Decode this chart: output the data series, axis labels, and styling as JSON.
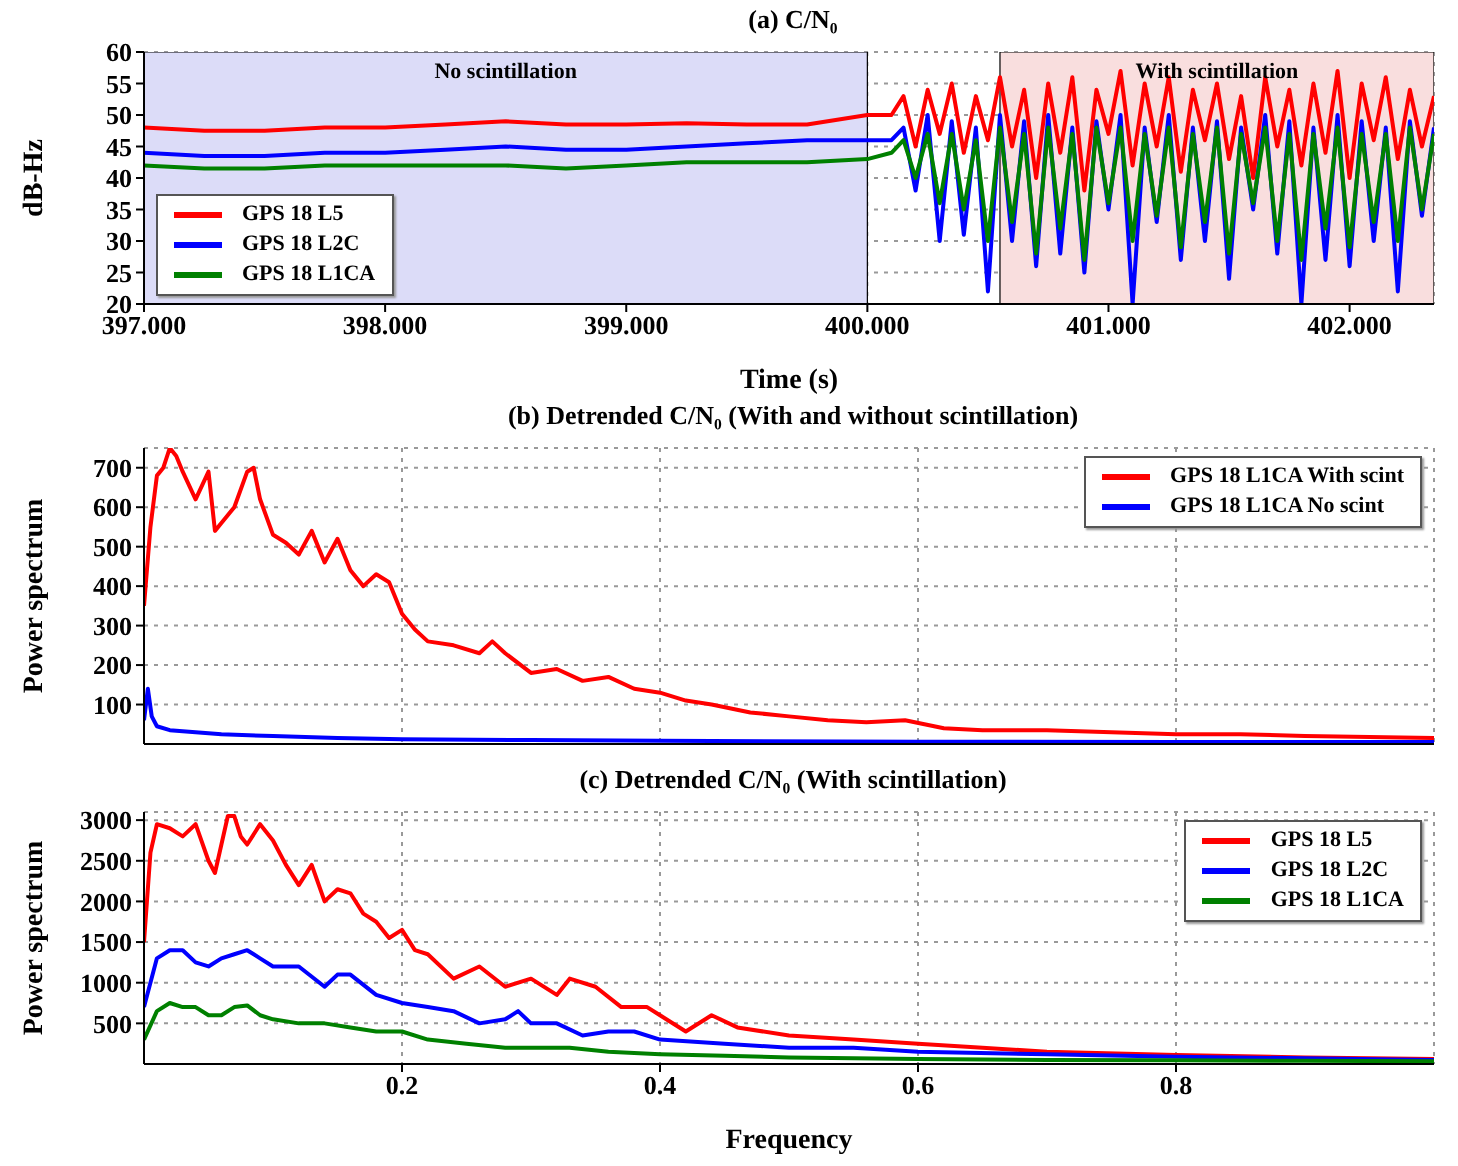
{
  "chart_data": [
    {
      "type": "line",
      "title": "(a) C/N₀",
      "xlabel": "Time (s)",
      "ylabel": "dB-Hz",
      "xlim": [
        397,
        402.35
      ],
      "xticks": [
        {
          "value": 397,
          "label": "397.000"
        },
        {
          "value": 398,
          "label": "398.000"
        },
        {
          "value": 399,
          "label": "399.000"
        },
        {
          "value": 400,
          "label": "400.000"
        },
        {
          "value": 401,
          "label": "401.000"
        },
        {
          "value": 402,
          "label": "402.000"
        }
      ],
      "ylim": [
        20,
        60
      ],
      "yticks": [
        20,
        25,
        30,
        35,
        40,
        45,
        50,
        55,
        60
      ],
      "grid": true,
      "legend": "bottom left",
      "line_style": "solid",
      "bands": [
        {
          "axis": "x",
          "from": 397,
          "to": 400,
          "label": "No scintillation",
          "color": "#dcdcf8"
        },
        {
          "axis": "x",
          "from": 400.55,
          "to": 402.35,
          "label": "With scintillation",
          "color": "#f9dede"
        }
      ],
      "x": [
        397,
        397.25,
        397.5,
        397.75,
        398,
        398.25,
        398.5,
        398.75,
        399,
        399.25,
        399.5,
        399.75,
        400,
        400.1,
        400.15,
        400.2,
        400.25,
        400.3,
        400.35,
        400.4,
        400.45,
        400.5,
        400.55,
        400.6,
        400.65,
        400.7,
        400.75,
        400.8,
        400.85,
        400.9,
        400.95,
        401,
        401.05,
        401.1,
        401.15,
        401.2,
        401.25,
        401.3,
        401.35,
        401.4,
        401.45,
        401.5,
        401.55,
        401.6,
        401.65,
        401.7,
        401.75,
        401.8,
        401.85,
        401.9,
        401.95,
        402,
        402.05,
        402.1,
        402.15,
        402.2,
        402.25,
        402.3,
        402.35
      ],
      "series": [
        {
          "name": "GPS 18 L5",
          "color": "#ff0000",
          "values": [
            48,
            47.5,
            47.5,
            48,
            48,
            48.5,
            49,
            48.5,
            48.5,
            48.7,
            48.5,
            48.5,
            50,
            50,
            53,
            45,
            54,
            47,
            55,
            44,
            53,
            46,
            56,
            45,
            54,
            40,
            55,
            44,
            56,
            38,
            54,
            47,
            57,
            42,
            55,
            45,
            56,
            41,
            54,
            46,
            55,
            43,
            53,
            40,
            56,
            45,
            54,
            42,
            55,
            44,
            57,
            40,
            55,
            46,
            56,
            43,
            54,
            45,
            53
          ]
        },
        {
          "name": "GPS 18 L2C",
          "color": "#0000ff",
          "values": [
            44,
            43.5,
            43.5,
            44,
            44,
            44.5,
            45,
            44.5,
            44.5,
            45,
            45.5,
            46,
            46,
            46,
            48,
            38,
            50,
            30,
            49,
            31,
            48,
            22,
            50,
            30,
            49,
            26,
            50,
            28,
            48,
            25,
            49,
            35,
            50,
            20,
            48,
            33,
            50,
            27,
            48,
            30,
            49,
            24,
            48,
            35,
            50,
            28,
            49,
            20,
            48,
            27,
            50,
            26,
            49,
            30,
            48,
            22,
            49,
            34,
            48
          ]
        },
        {
          "name": "GPS 18 L1CA",
          "color": "#008000",
          "values": [
            42,
            41.5,
            41.5,
            42,
            42,
            42,
            42,
            41.5,
            42,
            42.5,
            42.5,
            42.5,
            43,
            44,
            46,
            40,
            47,
            36,
            47,
            35,
            46,
            30,
            48,
            33,
            47,
            28,
            48,
            32,
            47,
            27,
            48,
            36,
            48,
            30,
            47,
            34,
            48,
            29,
            47,
            33,
            48,
            28,
            47,
            36,
            48,
            30,
            47,
            27,
            47,
            32,
            48,
            29,
            47,
            33,
            47,
            30,
            48,
            35,
            47
          ]
        }
      ]
    },
    {
      "type": "line",
      "title": "(b) Detrended C/N₀ (With and without scintillation)",
      "ylabel": "Power spectrum",
      "xlim": [
        0,
        1
      ],
      "xticks": [
        0.2,
        0.4,
        0.6,
        0.8
      ],
      "ylim": [
        0,
        750
      ],
      "yticks": [
        100,
        200,
        300,
        400,
        500,
        600,
        700
      ],
      "grid": true,
      "legend": "top right",
      "tick_labels": "y",
      "line_style": "solid",
      "series": [
        {
          "name": "GPS 18 L1CA With scint",
          "color": "#ff0000",
          "x": [
            0,
            0.005,
            0.01,
            0.015,
            0.02,
            0.025,
            0.03,
            0.04,
            0.05,
            0.055,
            0.06,
            0.07,
            0.08,
            0.085,
            0.09,
            0.1,
            0.11,
            0.12,
            0.13,
            0.14,
            0.15,
            0.16,
            0.17,
            0.18,
            0.19,
            0.2,
            0.21,
            0.22,
            0.24,
            0.26,
            0.27,
            0.28,
            0.3,
            0.32,
            0.34,
            0.36,
            0.38,
            0.4,
            0.42,
            0.44,
            0.47,
            0.5,
            0.53,
            0.56,
            0.59,
            0.62,
            0.65,
            0.7,
            0.75,
            0.8,
            0.85,
            0.9,
            0.95,
            1
          ],
          "values": [
            350,
            550,
            680,
            700,
            750,
            730,
            690,
            620,
            690,
            540,
            560,
            600,
            690,
            700,
            620,
            530,
            510,
            480,
            540,
            460,
            520,
            440,
            400,
            430,
            410,
            330,
            290,
            260,
            250,
            230,
            260,
            230,
            180,
            190,
            160,
            170,
            140,
            130,
            110,
            100,
            80,
            70,
            60,
            55,
            60,
            40,
            35,
            35,
            30,
            25,
            25,
            20,
            18,
            15
          ]
        },
        {
          "name": "GPS 18 L1CA No scint",
          "color": "#0000ff",
          "x": [
            0,
            0.003,
            0.006,
            0.01,
            0.02,
            0.04,
            0.06,
            0.1,
            0.15,
            0.2,
            0.3,
            0.4,
            0.6,
            0.8,
            1
          ],
          "values": [
            60,
            140,
            70,
            45,
            35,
            30,
            25,
            20,
            15,
            12,
            10,
            8,
            6,
            5,
            5
          ]
        }
      ]
    },
    {
      "type": "line",
      "title": "(c) Detrended C/N₀ (With scintillation)",
      "xlabel": "Frequency",
      "ylabel": "Power spectrum",
      "xlim": [
        0,
        1
      ],
      "xticks": [
        0.2,
        0.4,
        0.6,
        0.8
      ],
      "ylim": [
        0,
        3100
      ],
      "yticks": [
        500,
        1000,
        1500,
        2000,
        2500,
        3000
      ],
      "grid": true,
      "legend": "top right",
      "line_style": "solid",
      "series": [
        {
          "name": "GPS 18 L5",
          "color": "#ff0000",
          "x": [
            0,
            0.005,
            0.01,
            0.02,
            0.03,
            0.04,
            0.05,
            0.055,
            0.06,
            0.065,
            0.07,
            0.075,
            0.08,
            0.09,
            0.1,
            0.11,
            0.12,
            0.13,
            0.14,
            0.15,
            0.16,
            0.17,
            0.18,
            0.19,
            0.2,
            0.21,
            0.22,
            0.24,
            0.26,
            0.28,
            0.3,
            0.32,
            0.33,
            0.35,
            0.37,
            0.39,
            0.4,
            0.42,
            0.44,
            0.46,
            0.5,
            0.55,
            0.6,
            0.65,
            0.7,
            0.8,
            0.9,
            1
          ],
          "values": [
            1500,
            2600,
            2950,
            2900,
            2800,
            2950,
            2500,
            2350,
            2700,
            3050,
            3050,
            2800,
            2700,
            2950,
            2750,
            2450,
            2200,
            2450,
            2000,
            2150,
            2100,
            1850,
            1750,
            1550,
            1650,
            1400,
            1350,
            1050,
            1200,
            950,
            1050,
            850,
            1050,
            950,
            700,
            700,
            600,
            400,
            600,
            450,
            350,
            300,
            250,
            200,
            150,
            110,
            80,
            60
          ]
        },
        {
          "name": "GPS 18 L2C",
          "color": "#0000ff",
          "x": [
            0,
            0.01,
            0.02,
            0.03,
            0.04,
            0.05,
            0.06,
            0.07,
            0.08,
            0.09,
            0.1,
            0.12,
            0.14,
            0.15,
            0.16,
            0.18,
            0.2,
            0.22,
            0.24,
            0.26,
            0.28,
            0.29,
            0.3,
            0.32,
            0.34,
            0.36,
            0.38,
            0.4,
            0.45,
            0.5,
            0.55,
            0.6,
            0.7,
            0.8,
            0.9,
            1
          ],
          "values": [
            700,
            1300,
            1400,
            1400,
            1250,
            1200,
            1300,
            1350,
            1400,
            1300,
            1200,
            1200,
            950,
            1100,
            1100,
            850,
            750,
            700,
            650,
            500,
            550,
            650,
            500,
            500,
            350,
            400,
            400,
            300,
            250,
            200,
            200,
            150,
            120,
            90,
            70,
            50
          ]
        },
        {
          "name": "GPS 18 L1CA",
          "color": "#008000",
          "x": [
            0,
            0.01,
            0.02,
            0.03,
            0.04,
            0.05,
            0.06,
            0.07,
            0.08,
            0.09,
            0.1,
            0.12,
            0.14,
            0.16,
            0.18,
            0.2,
            0.22,
            0.25,
            0.28,
            0.3,
            0.33,
            0.36,
            0.4,
            0.45,
            0.5,
            0.6,
            0.7,
            0.8,
            0.9,
            1
          ],
          "values": [
            300,
            650,
            750,
            700,
            700,
            600,
            600,
            700,
            720,
            600,
            550,
            500,
            500,
            450,
            400,
            400,
            300,
            250,
            200,
            200,
            200,
            150,
            120,
            100,
            80,
            60,
            50,
            45,
            40,
            35
          ]
        }
      ]
    }
  ]
}
